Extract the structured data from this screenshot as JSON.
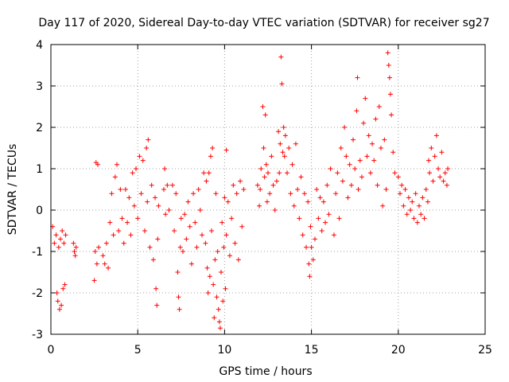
{
  "chart_data": {
    "type": "scatter",
    "title": "Day 117 of 2020, Sidereal Day-to-day VTEC variation (SDTVAR) for receiver sg27",
    "xlabel": "GPS time / hours",
    "ylabel": "SDTVAR / TECUs",
    "xlim": [
      0,
      25
    ],
    "ylim": [
      -3,
      4
    ],
    "xticks": [
      0,
      5,
      10,
      15,
      20,
      25
    ],
    "yticks": [
      -3,
      -2,
      -1,
      0,
      1,
      2,
      3,
      4
    ],
    "grid": true,
    "marker": "+",
    "color": "#ff0000",
    "series": [
      {
        "name": "SDTVAR",
        "points": [
          [
            0.1,
            -0.4
          ],
          [
            0.2,
            -0.8
          ],
          [
            0.3,
            -0.6
          ],
          [
            0.35,
            -2.0
          ],
          [
            0.4,
            -2.2
          ],
          [
            0.45,
            -0.9
          ],
          [
            0.5,
            -2.4
          ],
          [
            0.55,
            -0.7
          ],
          [
            0.6,
            -2.3
          ],
          [
            0.65,
            -0.5
          ],
          [
            0.7,
            -1.9
          ],
          [
            0.75,
            -0.8
          ],
          [
            0.8,
            -1.8
          ],
          [
            0.85,
            -0.6
          ],
          [
            1.3,
            -0.8
          ],
          [
            1.35,
            -1.0
          ],
          [
            1.4,
            -1.1
          ],
          [
            1.45,
            -0.9
          ],
          [
            2.5,
            -1.7
          ],
          [
            2.55,
            -1.0
          ],
          [
            2.6,
            1.15
          ],
          [
            2.65,
            -1.3
          ],
          [
            2.7,
            1.1
          ],
          [
            2.75,
            -0.9
          ],
          [
            3.0,
            -1.1
          ],
          [
            3.1,
            -1.3
          ],
          [
            3.2,
            -0.8
          ],
          [
            3.3,
            -1.4
          ],
          [
            3.4,
            -0.3
          ],
          [
            3.5,
            0.4
          ],
          [
            3.6,
            -0.6
          ],
          [
            3.7,
            0.8
          ],
          [
            3.8,
            1.1
          ],
          [
            3.9,
            -0.5
          ],
          [
            4.0,
            0.5
          ],
          [
            4.1,
            -0.2
          ],
          [
            4.2,
            -0.8
          ],
          [
            4.3,
            0.5
          ],
          [
            4.4,
            -0.3
          ],
          [
            4.5,
            0.3
          ],
          [
            4.6,
            -0.6
          ],
          [
            4.7,
            0.9
          ],
          [
            4.8,
            0.1
          ],
          [
            4.9,
            1.0
          ],
          [
            5.0,
            -0.2
          ],
          [
            5.1,
            1.3
          ],
          [
            5.2,
            0.4
          ],
          [
            5.3,
            1.2
          ],
          [
            5.4,
            -0.5
          ],
          [
            5.5,
            1.5
          ],
          [
            5.55,
            0.2
          ],
          [
            5.6,
            1.7
          ],
          [
            5.7,
            -0.9
          ],
          [
            5.8,
            0.6
          ],
          [
            5.9,
            -1.2
          ],
          [
            6.0,
            0.3
          ],
          [
            6.05,
            -1.9
          ],
          [
            6.1,
            -2.3
          ],
          [
            6.15,
            -0.7
          ],
          [
            6.2,
            0.1
          ],
          [
            6.5,
            0.5
          ],
          [
            6.55,
            1.0
          ],
          [
            6.6,
            -0.1
          ],
          [
            6.7,
            0.6
          ],
          [
            6.8,
            0.0
          ],
          [
            7.0,
            0.6
          ],
          [
            7.1,
            -0.5
          ],
          [
            7.2,
            0.4
          ],
          [
            7.3,
            -1.5
          ],
          [
            7.35,
            -2.1
          ],
          [
            7.4,
            -2.4
          ],
          [
            7.45,
            -0.9
          ],
          [
            7.5,
            -0.2
          ],
          [
            7.6,
            -1.0
          ],
          [
            7.7,
            -0.1
          ],
          [
            7.8,
            -0.7
          ],
          [
            7.9,
            0.2
          ],
          [
            8.0,
            -0.4
          ],
          [
            8.1,
            -1.3
          ],
          [
            8.2,
            0.4
          ],
          [
            8.3,
            -0.3
          ],
          [
            8.4,
            -0.9
          ],
          [
            8.5,
            0.5
          ],
          [
            8.6,
            0.0
          ],
          [
            8.7,
            -0.6
          ],
          [
            8.8,
            0.9
          ],
          [
            8.9,
            -0.8
          ],
          [
            8.95,
            0.7
          ],
          [
            9.0,
            -1.4
          ],
          [
            9.05,
            -2.0
          ],
          [
            9.1,
            0.9
          ],
          [
            9.15,
            -1.6
          ],
          [
            9.2,
            1.3
          ],
          [
            9.25,
            -0.5
          ],
          [
            9.3,
            1.5
          ],
          [
            9.35,
            -1.8
          ],
          [
            9.4,
            -2.6
          ],
          [
            9.45,
            -1.2
          ],
          [
            9.5,
            0.4
          ],
          [
            9.55,
            -2.1
          ],
          [
            9.6,
            -1.0
          ],
          [
            9.65,
            -2.4
          ],
          [
            9.7,
            -2.7
          ],
          [
            9.75,
            -2.85
          ],
          [
            9.8,
            -1.5
          ],
          [
            9.85,
            -0.3
          ],
          [
            9.9,
            -2.2
          ],
          [
            9.95,
            -0.9
          ],
          [
            10.0,
            0.3
          ],
          [
            10.05,
            -1.9
          ],
          [
            10.1,
            -0.6
          ],
          [
            10.2,
            0.2
          ],
          [
            10.3,
            -1.1
          ],
          [
            10.4,
            -0.2
          ],
          [
            10.5,
            0.6
          ],
          [
            10.6,
            -0.8
          ],
          [
            10.7,
            0.4
          ],
          [
            10.8,
            -1.2
          ],
          [
            10.9,
            0.7
          ],
          [
            11.0,
            -0.4
          ],
          [
            11.1,
            0.5
          ],
          [
            10.1,
            1.45
          ],
          [
            11.9,
            0.6
          ],
          [
            12.0,
            0.1
          ],
          [
            12.05,
            0.5
          ],
          [
            12.1,
            1.0
          ],
          [
            12.2,
            2.5
          ],
          [
            12.25,
            1.5
          ],
          [
            12.3,
            0.8
          ],
          [
            12.35,
            2.3
          ],
          [
            12.4,
            1.1
          ],
          [
            12.45,
            0.2
          ],
          [
            12.5,
            0.9
          ],
          [
            12.6,
            0.4
          ],
          [
            12.7,
            1.3
          ],
          [
            12.8,
            0.6
          ],
          [
            12.9,
            0.0
          ],
          [
            13.0,
            0.7
          ],
          [
            13.1,
            1.9
          ],
          [
            13.15,
            0.9
          ],
          [
            13.2,
            1.6
          ],
          [
            13.25,
            3.7
          ],
          [
            13.3,
            3.05
          ],
          [
            13.35,
            1.4
          ],
          [
            13.4,
            2.0
          ],
          [
            13.45,
            1.3
          ],
          [
            13.5,
            1.8
          ],
          [
            13.6,
            0.9
          ],
          [
            13.7,
            1.5
          ],
          [
            13.8,
            0.4
          ],
          [
            13.9,
            1.1
          ],
          [
            14.0,
            0.1
          ],
          [
            14.1,
            1.6
          ],
          [
            14.2,
            0.5
          ],
          [
            14.3,
            -0.2
          ],
          [
            14.4,
            0.8
          ],
          [
            14.5,
            -0.6
          ],
          [
            14.6,
            0.4
          ],
          [
            14.7,
            -0.9
          ],
          [
            14.8,
            0.2
          ],
          [
            14.85,
            -1.3
          ],
          [
            14.9,
            -1.6
          ],
          [
            14.95,
            -0.4
          ],
          [
            15.0,
            -0.9
          ],
          [
            15.1,
            -1.2
          ],
          [
            15.2,
            -0.7
          ],
          [
            15.3,
            0.5
          ],
          [
            15.4,
            -0.2
          ],
          [
            15.5,
            0.3
          ],
          [
            15.6,
            -0.5
          ],
          [
            15.7,
            0.2
          ],
          [
            15.8,
            -0.3
          ],
          [
            15.9,
            0.6
          ],
          [
            16.0,
            -0.1
          ],
          [
            16.1,
            1.0
          ],
          [
            16.3,
            -0.6
          ],
          [
            16.4,
            0.4
          ],
          [
            16.5,
            0.9
          ],
          [
            16.6,
            -0.2
          ],
          [
            16.7,
            1.5
          ],
          [
            16.8,
            0.7
          ],
          [
            16.9,
            2.0
          ],
          [
            17.0,
            1.3
          ],
          [
            17.1,
            0.3
          ],
          [
            17.2,
            1.1
          ],
          [
            17.3,
            0.6
          ],
          [
            17.4,
            1.7
          ],
          [
            17.5,
            1.0
          ],
          [
            17.6,
            2.4
          ],
          [
            17.65,
            3.2
          ],
          [
            17.7,
            0.5
          ],
          [
            17.8,
            1.2
          ],
          [
            17.9,
            0.8
          ],
          [
            18.0,
            2.1
          ],
          [
            18.1,
            2.7
          ],
          [
            18.2,
            1.3
          ],
          [
            18.3,
            1.8
          ],
          [
            18.4,
            0.9
          ],
          [
            18.5,
            1.6
          ],
          [
            18.6,
            1.2
          ],
          [
            18.7,
            2.2
          ],
          [
            18.8,
            0.6
          ],
          [
            18.9,
            2.5
          ],
          [
            19.0,
            1.5
          ],
          [
            19.1,
            0.1
          ],
          [
            19.2,
            1.7
          ],
          [
            19.3,
            0.5
          ],
          [
            19.4,
            3.8
          ],
          [
            19.45,
            3.5
          ],
          [
            19.5,
            3.2
          ],
          [
            19.55,
            2.8
          ],
          [
            19.6,
            2.3
          ],
          [
            19.7,
            1.4
          ],
          [
            19.8,
            0.9
          ],
          [
            20.0,
            0.8
          ],
          [
            20.1,
            0.4
          ],
          [
            20.2,
            0.6
          ],
          [
            20.3,
            0.1
          ],
          [
            20.4,
            0.5
          ],
          [
            20.5,
            -0.1
          ],
          [
            20.6,
            0.3
          ],
          [
            20.7,
            0.0
          ],
          [
            20.8,
            0.2
          ],
          [
            20.9,
            -0.2
          ],
          [
            21.0,
            0.4
          ],
          [
            21.1,
            -0.3
          ],
          [
            21.2,
            0.1
          ],
          [
            21.3,
            -0.1
          ],
          [
            21.4,
            0.3
          ],
          [
            21.5,
            -0.2
          ],
          [
            21.6,
            0.5
          ],
          [
            21.7,
            0.2
          ],
          [
            21.75,
            1.2
          ],
          [
            21.8,
            0.9
          ],
          [
            21.9,
            1.5
          ],
          [
            22.0,
            0.7
          ],
          [
            22.1,
            1.3
          ],
          [
            22.2,
            1.8
          ],
          [
            22.3,
            1.0
          ],
          [
            22.4,
            0.8
          ],
          [
            22.5,
            1.4
          ],
          [
            22.6,
            0.7
          ],
          [
            22.7,
            0.9
          ],
          [
            22.8,
            0.6
          ],
          [
            22.85,
            1.0
          ]
        ]
      }
    ]
  }
}
